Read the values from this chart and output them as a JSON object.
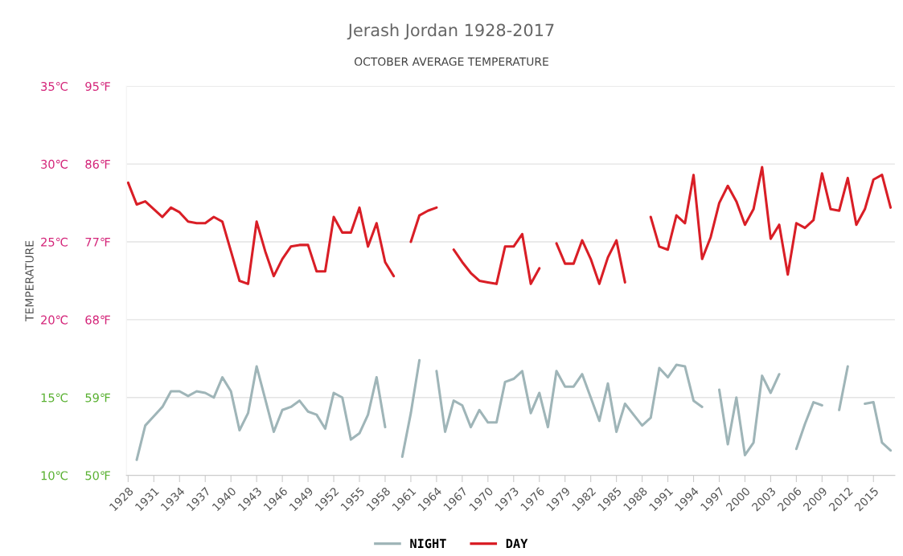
{
  "chart_data": {
    "type": "line",
    "title": "Jerash Jordan 1928-2017",
    "subtitle": "OCTOBER AVERAGE TEMPERATURE",
    "ylabel": "TEMPERATURE",
    "x": [
      1928,
      1929,
      1930,
      1931,
      1932,
      1933,
      1934,
      1935,
      1936,
      1937,
      1938,
      1939,
      1940,
      1941,
      1942,
      1943,
      1944,
      1945,
      1946,
      1947,
      1948,
      1949,
      1950,
      1951,
      1952,
      1953,
      1954,
      1955,
      1956,
      1957,
      1958,
      1959,
      1960,
      1961,
      1962,
      1963,
      1964,
      1965,
      1966,
      1967,
      1968,
      1969,
      1970,
      1971,
      1972,
      1973,
      1974,
      1975,
      1976,
      1977,
      1978,
      1979,
      1980,
      1981,
      1982,
      1983,
      1984,
      1985,
      1986,
      1987,
      1988,
      1989,
      1990,
      1991,
      1992,
      1993,
      1994,
      1995,
      1996,
      1997,
      1998,
      1999,
      2000,
      2001,
      2002,
      2003,
      2004,
      2005,
      2006,
      2007,
      2008,
      2009,
      2010,
      2011,
      2012,
      2013,
      2014,
      2015,
      2016,
      2017
    ],
    "series": [
      {
        "name": "NIGHT",
        "color": "#9fb5b8",
        "values": [
          null,
          11.0,
          13.2,
          13.8,
          14.4,
          15.4,
          15.4,
          15.1,
          15.4,
          15.3,
          15.0,
          16.3,
          15.4,
          12.9,
          14.0,
          17.0,
          14.9,
          12.8,
          14.2,
          14.4,
          14.8,
          14.1,
          13.9,
          13.0,
          15.3,
          15.0,
          12.3,
          12.7,
          13.9,
          16.3,
          13.1,
          null,
          11.2,
          14.0,
          17.4,
          null,
          16.7,
          12.8,
          14.8,
          14.5,
          13.1,
          14.2,
          13.4,
          13.4,
          16.0,
          16.2,
          16.7,
          14.0,
          15.3,
          13.1,
          16.7,
          15.7,
          15.7,
          16.5,
          15.0,
          13.5,
          15.9,
          12.8,
          14.6,
          13.9,
          13.2,
          13.7,
          16.9,
          16.3,
          17.1,
          17.0,
          14.8,
          14.4,
          null,
          15.5,
          12.0,
          15.0,
          11.3,
          12.1,
          16.4,
          15.3,
          16.5,
          null,
          11.7,
          13.3,
          14.7,
          14.5,
          null,
          14.2,
          17.0,
          null,
          14.6,
          14.7,
          12.1,
          11.6
        ]
      },
      {
        "name": "DAY",
        "color": "#d91e26",
        "values": [
          28.8,
          27.4,
          27.6,
          27.1,
          26.6,
          27.2,
          26.9,
          26.3,
          26.2,
          26.2,
          26.6,
          26.3,
          24.4,
          22.5,
          22.3,
          26.3,
          24.4,
          22.8,
          23.9,
          24.7,
          24.8,
          24.8,
          23.1,
          23.1,
          26.6,
          25.6,
          25.6,
          27.2,
          24.7,
          26.2,
          23.7,
          22.8,
          null,
          25.0,
          26.7,
          27.0,
          27.2,
          null,
          24.5,
          23.7,
          23.0,
          22.5,
          22.4,
          22.3,
          24.7,
          24.7,
          25.5,
          22.3,
          23.3,
          null,
          24.9,
          23.6,
          23.6,
          25.1,
          23.9,
          22.3,
          24.0,
          25.1,
          22.4,
          null,
          null,
          26.6,
          24.7,
          24.5,
          26.7,
          26.2,
          29.3,
          23.9,
          25.3,
          27.5,
          28.6,
          27.6,
          26.1,
          27.1,
          29.8,
          25.2,
          26.1,
          22.9,
          26.2,
          25.9,
          26.4,
          29.4,
          27.1,
          27.0,
          29.1,
          26.1,
          27.1,
          29.0,
          29.3,
          27.2
        ]
      }
    ],
    "xlim": [
      1927.8,
      2017.5
    ],
    "xticks": [
      1928,
      1931,
      1934,
      1937,
      1940,
      1943,
      1946,
      1949,
      1952,
      1955,
      1958,
      1961,
      1964,
      1967,
      1970,
      1973,
      1976,
      1979,
      1982,
      1985,
      1988,
      1991,
      1994,
      1997,
      2000,
      2003,
      2006,
      2009,
      2012,
      2015
    ],
    "ylim": [
      10,
      35
    ],
    "yticks": [
      {
        "value": 10,
        "label": "10℃"
      },
      {
        "value": 15,
        "label": "15℃"
      },
      {
        "value": 20,
        "label": "20℃"
      },
      {
        "value": 25,
        "label": "25℃"
      },
      {
        "value": 30,
        "label": "30℃"
      },
      {
        "value": 35,
        "label": "35℃"
      }
    ],
    "y2lim": [
      50,
      95
    ],
    "y2ticks": [
      {
        "value": 50,
        "label": "50℉"
      },
      {
        "value": 59,
        "label": "59℉"
      },
      {
        "value": 68,
        "label": "68℉"
      },
      {
        "value": 77,
        "label": "77℉"
      },
      {
        "value": 86,
        "label": "86℉"
      },
      {
        "value": 95,
        "label": "95℉"
      }
    ],
    "grid": "y",
    "legend": "bottom",
    "line_style": "solid"
  }
}
